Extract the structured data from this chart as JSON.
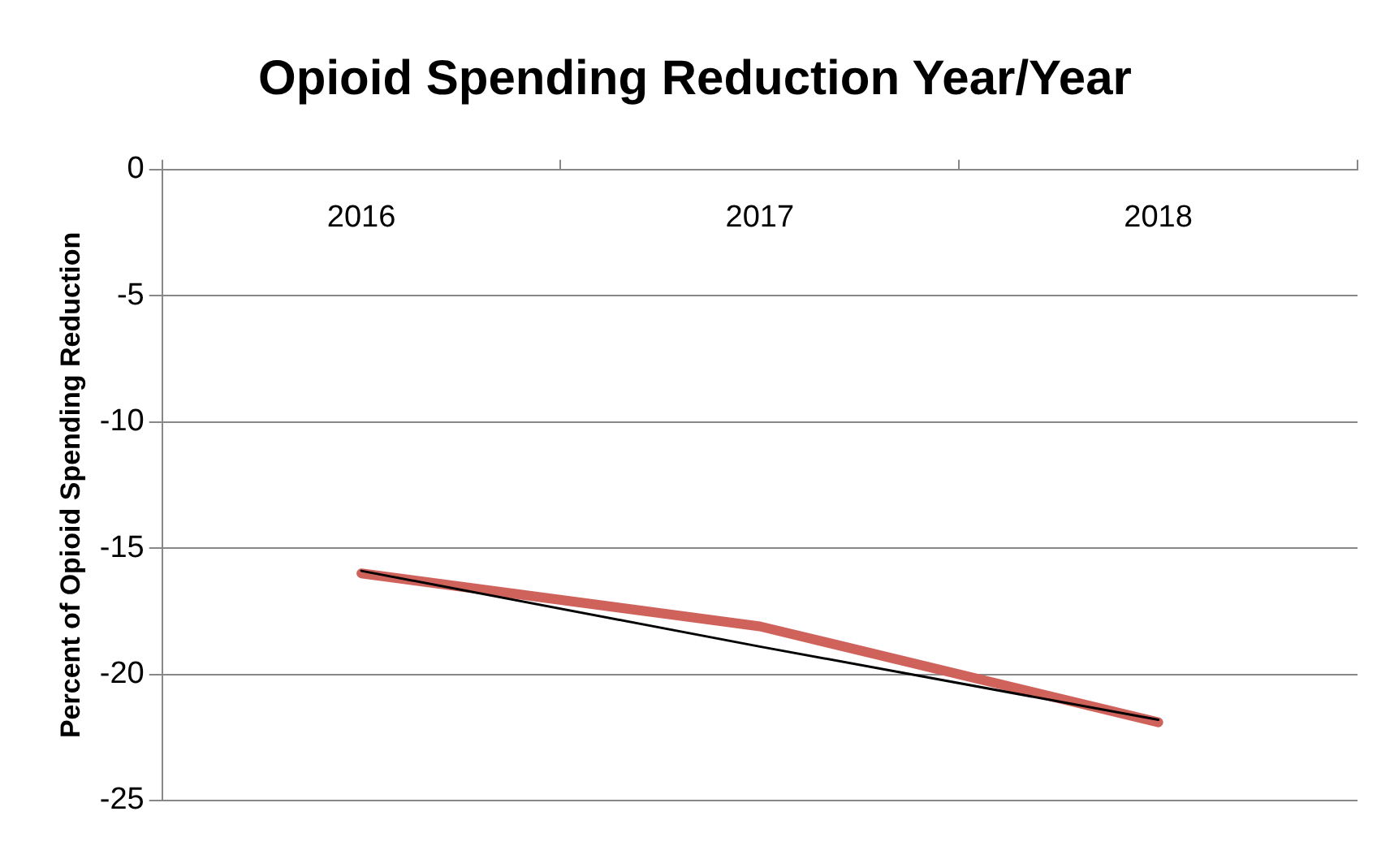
{
  "chart_data": {
    "type": "line",
    "title": "Opioid Spending Reduction Year/Year",
    "ylabel": "Percent of Opioid Spending Reduction",
    "categories": [
      "2016",
      "2017",
      "2018"
    ],
    "series": [
      {
        "color": "#d0625c",
        "values": [
          -16.0,
          -18.1,
          -21.9
        ]
      },
      {
        "color": "#000000",
        "values": [
          -15.9,
          -18.9,
          -21.8
        ]
      }
    ],
    "ylim": [
      -25,
      0
    ],
    "yticks": [
      0,
      -5,
      -10,
      -15,
      -20,
      -25
    ],
    "grid": "y",
    "legend": false,
    "marker": "none",
    "line_style": "solid"
  }
}
